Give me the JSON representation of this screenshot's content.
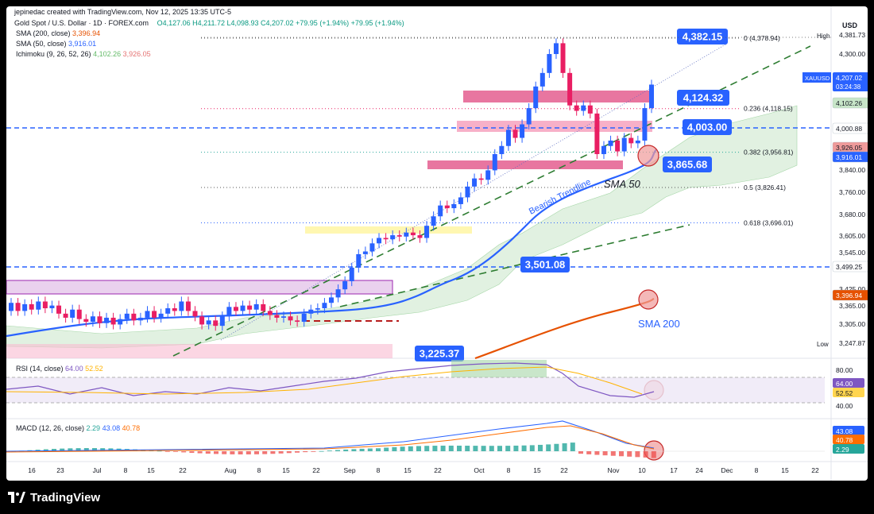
{
  "header": {
    "byline": "jepinedac created with TradingView.com, Nov 12, 2025 13:35 UTC-5",
    "symbol_line": "Gold Spot / U.S. Dollar · 1D · FOREX.com",
    "ohlc": "O4,127.06  H4,211.72  L4,098.93  C4,207.02  +79.95 (+1.94%)  +79.95 (+1.94%)"
  },
  "indicators": {
    "sma200": {
      "label": "SMA (200, close)",
      "value": "3,396.94"
    },
    "sma50": {
      "label": "SMA (50, close)",
      "value": "3,916.01"
    },
    "ichimoku": {
      "label": "Ichimoku (9, 26, 52, 26)",
      "v1": "4,102.26",
      "v2": "3,926.05"
    },
    "rsi": {
      "label": "RSI (14, close)",
      "v1": "64.00",
      "v2": "52.52"
    },
    "macd": {
      "label": "MACD (12, 26, close)",
      "v1": "2.29",
      "v2": "43.08",
      "v3": "40.78"
    }
  },
  "footer": {
    "brand": "TradingView"
  },
  "colors": {
    "up": "#2962ff",
    "down": "#e91e63",
    "sma50": "#2962ff",
    "sma200": "#e65100",
    "cloud": "#a5d6a7",
    "trend": "#2e7d32",
    "callout": "#2962ff"
  },
  "chart_data": {
    "type": "candlestick",
    "currency": "USD",
    "price_axis_ticks": [
      "4,381.73",
      "4,300.00",
      "4,102.26",
      "4,000.88",
      "3,840.00",
      "3,760.00",
      "3,680.00",
      "3,605.00",
      "3,545.00",
      "3,499.25",
      "3,425.00",
      "3,365.00",
      "3,305.00",
      "3,247.87"
    ],
    "price_axis_badges": [
      {
        "label": "XAUUSD",
        "value": "4,207.02",
        "sub": "03:24:38",
        "color": "#2962ff"
      },
      {
        "value": "4,102.26",
        "color": "#c8e6c9"
      },
      {
        "value": "4,000.88",
        "color": "#ffffff"
      },
      {
        "value": "3,926.05",
        "color": "#ef9a9a"
      },
      {
        "value": "3,916.01",
        "color": "#2962ff"
      },
      {
        "value": "3,499.25",
        "color": "#ffffff"
      },
      {
        "value": "3,396.94",
        "color": "#e65100"
      },
      {
        "label": "High",
        "value": "4,381.73"
      },
      {
        "label": "Low",
        "value": "3,247.87"
      }
    ],
    "x_axis_ticks": [
      "16",
      "23",
      "Jul",
      "8",
      "15",
      "22",
      "Aug",
      "8",
      "15",
      "22",
      "Sep",
      "8",
      "15",
      "22",
      "Oct",
      "8",
      "15",
      "22",
      "Nov",
      "10",
      "17",
      "24",
      "Dec",
      "8",
      "15",
      "22"
    ],
    "fibonacci": [
      {
        "level": "0",
        "price": "4,378.94",
        "price_num": 4378.94
      },
      {
        "level": "0.236",
        "price": "4,118.15",
        "price_num": 4118.15
      },
      {
        "level": "0.382",
        "price": "3,956.81",
        "price_num": 3956.81
      },
      {
        "level": "0.5",
        "price": "3,826.41",
        "price_num": 3826.41
      },
      {
        "level": "0.618",
        "price": "3,696.01",
        "price_num": 3696.01
      }
    ],
    "callouts": [
      "4,382.15",
      "4,124.32",
      "4,003.00",
      "3,865.68",
      "3,501.08",
      "3,225.37"
    ],
    "annotations": {
      "trend": "Bearish Trendline",
      "sma50": "SMA 50",
      "sma200": "SMA 200"
    },
    "candles": [
      [
        3370,
        3400
      ],
      [
        3400,
        3370
      ],
      [
        3370,
        3395
      ],
      [
        3395,
        3375
      ],
      [
        3375,
        3405
      ],
      [
        3405,
        3380
      ],
      [
        3380,
        3390
      ],
      [
        3390,
        3360
      ],
      [
        3360,
        3345
      ],
      [
        3345,
        3375
      ],
      [
        3375,
        3340
      ],
      [
        3340,
        3330
      ],
      [
        3330,
        3350
      ],
      [
        3350,
        3325
      ],
      [
        3325,
        3345
      ],
      [
        3345,
        3320
      ],
      [
        3320,
        3340
      ],
      [
        3340,
        3360
      ],
      [
        3360,
        3335
      ],
      [
        3335,
        3345
      ],
      [
        3345,
        3370
      ],
      [
        3370,
        3345
      ],
      [
        3345,
        3360
      ],
      [
        3360,
        3380
      ],
      [
        3380,
        3370
      ],
      [
        3370,
        3405
      ],
      [
        3405,
        3370
      ],
      [
        3370,
        3350
      ],
      [
        3350,
        3320
      ],
      [
        3320,
        3335
      ],
      [
        3335,
        3315
      ],
      [
        3315,
        3350
      ],
      [
        3350,
        3385
      ],
      [
        3385,
        3370
      ],
      [
        3370,
        3390
      ],
      [
        3390,
        3375
      ],
      [
        3375,
        3395
      ],
      [
        3395,
        3370
      ],
      [
        3370,
        3355
      ],
      [
        3355,
        3345
      ],
      [
        3345,
        3350
      ],
      [
        3350,
        3335
      ],
      [
        3335,
        3330
      ],
      [
        3330,
        3360
      ],
      [
        3360,
        3375
      ],
      [
        3375,
        3380
      ],
      [
        3380,
        3400
      ],
      [
        3400,
        3420
      ],
      [
        3420,
        3450
      ],
      [
        3450,
        3480
      ],
      [
        3480,
        3530
      ],
      [
        3530,
        3580
      ],
      [
        3580,
        3590
      ],
      [
        3590,
        3620
      ],
      [
        3620,
        3640
      ],
      [
        3640,
        3635
      ],
      [
        3635,
        3650
      ],
      [
        3650,
        3645
      ],
      [
        3645,
        3660
      ],
      [
        3660,
        3650
      ],
      [
        3650,
        3640
      ],
      [
        3640,
        3685
      ],
      [
        3685,
        3720
      ],
      [
        3720,
        3760
      ],
      [
        3760,
        3750
      ],
      [
        3750,
        3765
      ],
      [
        3765,
        3790
      ],
      [
        3790,
        3830
      ],
      [
        3830,
        3860
      ],
      [
        3860,
        3855
      ],
      [
        3855,
        3890
      ],
      [
        3890,
        3950
      ],
      [
        3950,
        3980
      ],
      [
        3980,
        4040
      ],
      [
        4040,
        4010
      ],
      [
        4010,
        4060
      ],
      [
        4060,
        4120
      ],
      [
        4120,
        4200
      ],
      [
        4200,
        4250
      ],
      [
        4250,
        4320
      ],
      [
        4320,
        4360
      ],
      [
        4360,
        4250
      ],
      [
        4250,
        4130
      ],
      [
        4130,
        4110
      ],
      [
        4110,
        4130
      ],
      [
        4130,
        4100
      ],
      [
        4100,
        3950
      ],
      [
        3950,
        3980
      ],
      [
        3980,
        4000
      ],
      [
        4000,
        3960
      ],
      [
        3960,
        4010
      ],
      [
        4010,
        3990
      ],
      [
        3990,
        4000
      ],
      [
        4000,
        4120
      ],
      [
        4120,
        4207
      ]
    ],
    "sma50": [
      [
        3330,
        3340
      ],
      [
        3340,
        3345
      ],
      [
        3345,
        3352
      ],
      [
        3352,
        3358
      ],
      [
        3358,
        3365
      ],
      [
        3365,
        3372
      ]
    ],
    "rsi_scale": [
      80,
      40
    ],
    "rsi_ticks": [
      "80.00",
      "64.00",
      "52.52",
      "40.00"
    ],
    "macd_ticks": [
      "43.08",
      "40.78",
      "2.29"
    ]
  }
}
